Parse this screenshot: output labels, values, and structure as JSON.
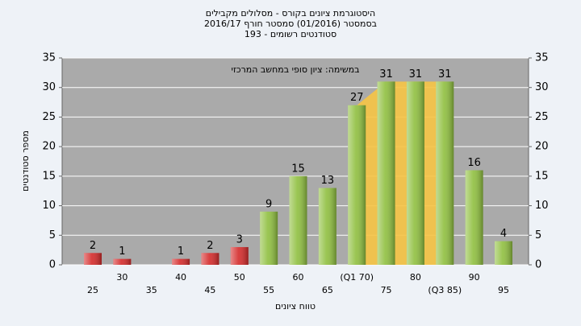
{
  "chart_data": {
    "type": "bar",
    "title": "היסטוגרמת ציונים בקורס - מסלולים מקבילים",
    "subtitle": "בסמסטר (01/2016) סמסטר חורף 2016/17",
    "subtitle2": "סטודנטים רשומים - 193",
    "annotation": "במשימה: ציון סופי במחשב המרכזי",
    "x_label": "טווח ציונים",
    "y_label": "מספר סטודנטים",
    "categories": [
      "25",
      "30",
      "35",
      "40",
      "45",
      "50",
      "55",
      "60",
      "65",
      "(Q1 70)",
      "75",
      "80",
      "(Q3 85)",
      "90",
      "95"
    ],
    "values": [
      2,
      1,
      null,
      1,
      2,
      3,
      9,
      15,
      13,
      27,
      31,
      31,
      31,
      16,
      4
    ],
    "colors": [
      "#d42a2a",
      "#d42a2a",
      "#d42a2a",
      "#d42a2a",
      "#d42a2a",
      "#d42a2a",
      "#8fbf3f",
      "#8fbf3f",
      "#8fbf3f",
      "#8fbf3f",
      "#8fbf3f",
      "#8fbf3f",
      "#8fbf3f",
      "#8fbf3f",
      "#8fbf3f"
    ],
    "band_color": "#f6c445",
    "ylim": [
      0,
      35
    ],
    "yticks": [
      0,
      5,
      10,
      15,
      20,
      25,
      30,
      35
    ],
    "grid": true
  }
}
